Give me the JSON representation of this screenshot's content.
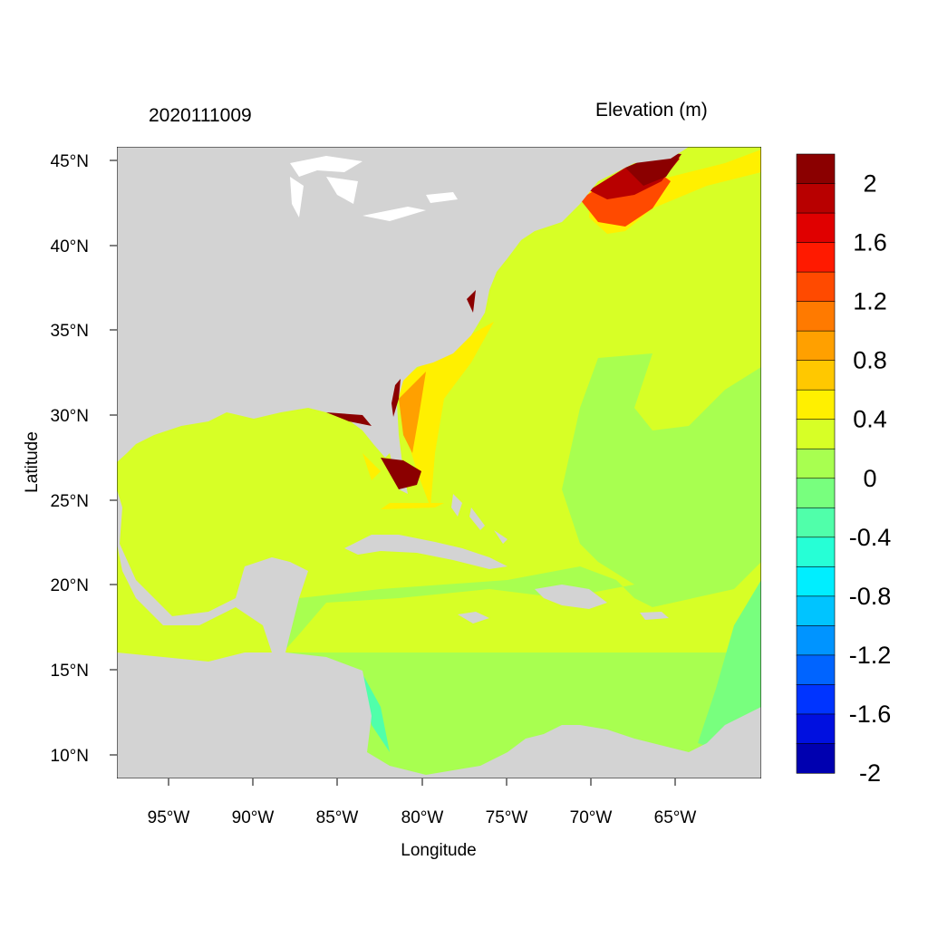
{
  "timestamp": "2020111009",
  "variable_title": "Elevation (m)",
  "x_axis_label": "Longitude",
  "y_axis_label": "Latitude",
  "x_ticks": [
    "95°W",
    "90°W",
    "85°W",
    "80°W",
    "75°W",
    "70°W",
    "65°W"
  ],
  "y_ticks": [
    "45°N",
    "40°N",
    "35°N",
    "30°N",
    "25°N",
    "20°N",
    "15°N",
    "10°N"
  ],
  "colorbar": {
    "labels": [
      "2",
      "1.6",
      "1.2",
      "0.8",
      "0.4",
      "0",
      "-0.4",
      "-0.8",
      "-1.2",
      "-1.6",
      "-2"
    ],
    "colors": [
      "#8b0000",
      "#b80000",
      "#e00000",
      "#ff1a00",
      "#ff4a00",
      "#ff7a00",
      "#ffa000",
      "#ffc800",
      "#fff000",
      "#d7ff26",
      "#a8ff50",
      "#78ff7e",
      "#50ffaa",
      "#26ffd6",
      "#00eeff",
      "#00c4ff",
      "#0094ff",
      "#0064ff",
      "#0034ff",
      "#0010e0",
      "#0000b0"
    ]
  },
  "colors": {
    "land": "#d3d3d3",
    "water_white": "#ffffff",
    "background": "#ffffff"
  }
}
